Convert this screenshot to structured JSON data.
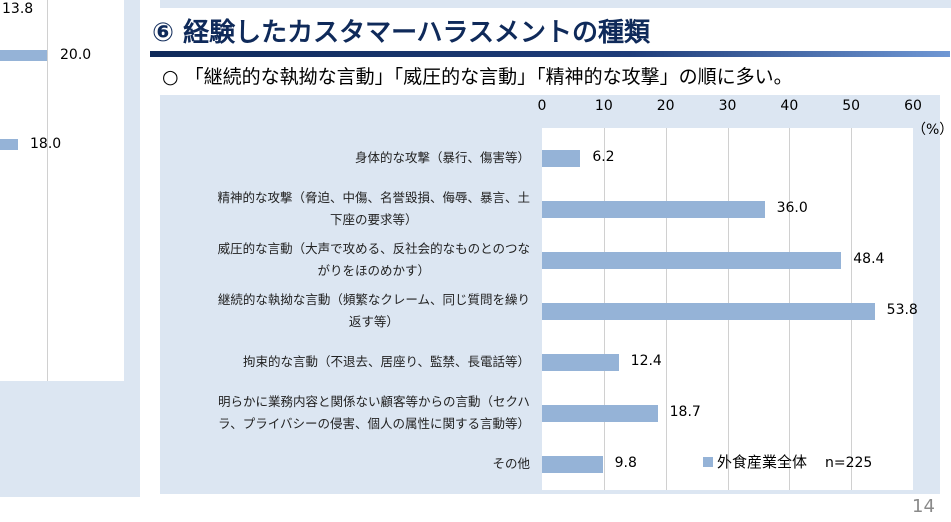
{
  "left_fragment": {
    "values": [
      "13.8",
      "20.0",
      "18.0"
    ]
  },
  "title": "⑥ 経験したカスタマーハラスメントの種類",
  "subtitle": "○ 「継続的な執拗な言動」「威圧的な言動」「精神的な攻撃」の順に多い。",
  "page_number": "14",
  "chart_data": {
    "type": "bar",
    "orientation": "horizontal",
    "categories": [
      [
        "身体的な攻撃（暴行、傷害等）"
      ],
      [
        "精神的な攻撃（脅迫、中傷、名誉毀損、侮辱、暴言、土",
        "下座の要求等）"
      ],
      [
        "威圧的な言動（大声で攻める、反社会的なものとのつな",
        "がりをほのめかす）"
      ],
      [
        "継続的な執拗な言動（頻繁なクレーム、同じ質問を繰り",
        "返す等）"
      ],
      [
        "拘束的な言動（不退去、居座り、監禁、長電話等）"
      ],
      [
        "明らかに業務内容と関係ない顧客等からの言動（セクハ",
        "ラ、プライバシーの侵害、個人の属性に関する言動等）"
      ],
      [
        "その他"
      ]
    ],
    "series": [
      {
        "name": "外食産業全体",
        "values": [
          6.2,
          36.0,
          48.4,
          53.8,
          12.4,
          18.7,
          9.8
        ],
        "labels": [
          "6.2",
          "36.0",
          "48.4",
          "53.8",
          "12.4",
          "18.7",
          "9.8"
        ],
        "color": "#95b3d7"
      }
    ],
    "xlim": [
      0,
      60
    ],
    "ticks": [
      "0",
      "10",
      "20",
      "30",
      "40",
      "50",
      "60"
    ],
    "unit": "（%）",
    "grid": true,
    "legend_position": "bottom-right",
    "legend_note": "n=225"
  }
}
